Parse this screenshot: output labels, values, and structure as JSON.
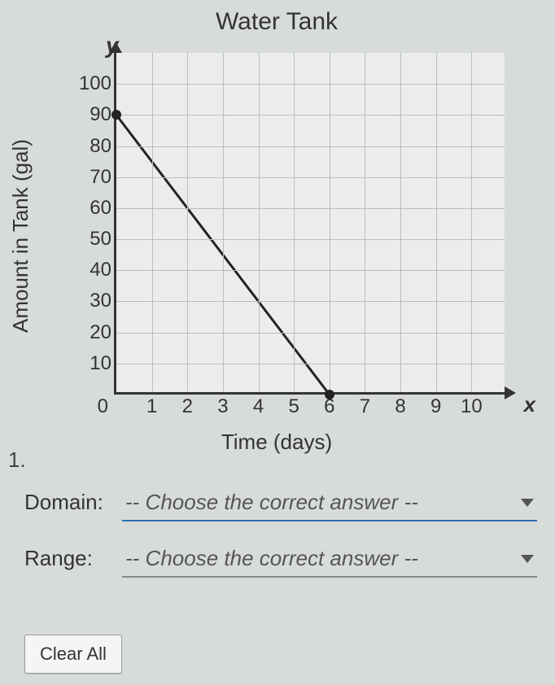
{
  "chart": {
    "type": "line",
    "title": "Water Tank",
    "title_fontsize": 30,
    "y_axis_var": "y",
    "x_axis_var": "x",
    "ylabel": "Amount in Tank (gal)",
    "xlabel": "Time (days)",
    "label_fontsize": 26,
    "tick_fontsize": 24,
    "xlim": [
      0,
      11
    ],
    "ylim": [
      0,
      110
    ],
    "xtick_values": [
      1,
      2,
      3,
      4,
      5,
      6,
      7,
      8,
      9,
      10
    ],
    "ytick_values": [
      10,
      20,
      30,
      40,
      50,
      60,
      70,
      80,
      90,
      100
    ],
    "origin_label": "0",
    "grid": true,
    "grid_color": "#b9bdb9",
    "background_color": "#ecedeb",
    "axis_color": "#333333",
    "line_color": "#222222",
    "line_width": 3,
    "marker_color": "#222222",
    "marker_size": 12,
    "data_points": [
      {
        "x": 0,
        "y": 90
      },
      {
        "x": 6,
        "y": 0
      }
    ]
  },
  "question_number": "1.",
  "domain": {
    "label": "Domain:",
    "placeholder": "-- Choose the correct answer --"
  },
  "range": {
    "label": "Range:",
    "placeholder": "-- Choose the correct answer --"
  },
  "clear_button": "Clear All"
}
